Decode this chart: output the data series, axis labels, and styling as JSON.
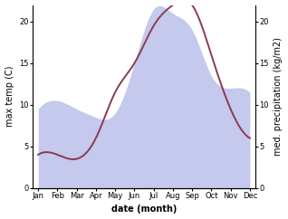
{
  "months": [
    "Jan",
    "Feb",
    "Mar",
    "Apr",
    "May",
    "Jun",
    "Jul",
    "Aug",
    "Sep",
    "Oct",
    "Nov",
    "Dec"
  ],
  "max_temp": [
    4.0,
    4.0,
    3.5,
    6.0,
    11.5,
    15.0,
    19.5,
    22.0,
    22.0,
    16.0,
    9.5,
    6.0
  ],
  "precipitation": [
    9.5,
    10.5,
    9.5,
    8.5,
    9.0,
    15.0,
    21.5,
    21.0,
    19.0,
    13.5,
    12.0,
    11.5
  ],
  "temp_color": "#8B3A52",
  "precip_fill_color": "#b0b8e8",
  "precip_fill_alpha": 0.75,
  "xlabel": "date (month)",
  "ylabel_left": "max temp (C)",
  "ylabel_right": "med. precipitation (kg/m2)",
  "ylim_left": [
    0,
    22
  ],
  "ylim_right": [
    0,
    22
  ],
  "yticks_left": [
    0,
    5,
    10,
    15,
    20
  ],
  "yticks_right": [
    0,
    5,
    10,
    15,
    20
  ],
  "label_fontsize": 7,
  "tick_fontsize": 6
}
